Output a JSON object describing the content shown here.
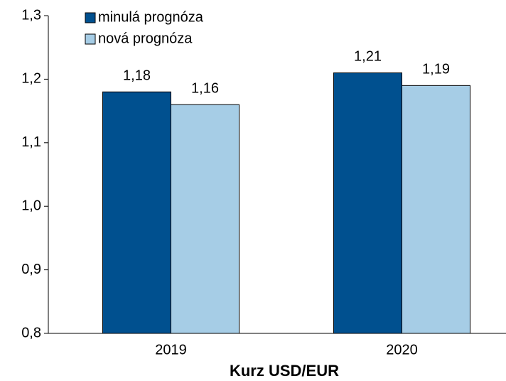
{
  "chart_data": {
    "type": "bar",
    "title": "Kurz USD/EUR",
    "categories": [
      "2019",
      "2020"
    ],
    "series": [
      {
        "name": "minulá prognóza",
        "color": "#00508f",
        "values": [
          1.18,
          1.21
        ],
        "value_labels": [
          "1,18",
          "1,21"
        ]
      },
      {
        "name": "nová prognóza",
        "color": "#a6cde6",
        "values": [
          1.16,
          1.19
        ],
        "value_labels": [
          "1,16",
          "1,19"
        ]
      }
    ],
    "ylim": [
      0.8,
      1.3
    ],
    "yticks": [
      {
        "value": 0.8,
        "label": "0,8"
      },
      {
        "value": 0.9,
        "label": "0,9"
      },
      {
        "value": 1.0,
        "label": "1,0"
      },
      {
        "value": 1.1,
        "label": "1,1"
      },
      {
        "value": 1.2,
        "label": "1,2"
      },
      {
        "value": 1.3,
        "label": "1,3"
      }
    ],
    "legend": "top-left"
  }
}
